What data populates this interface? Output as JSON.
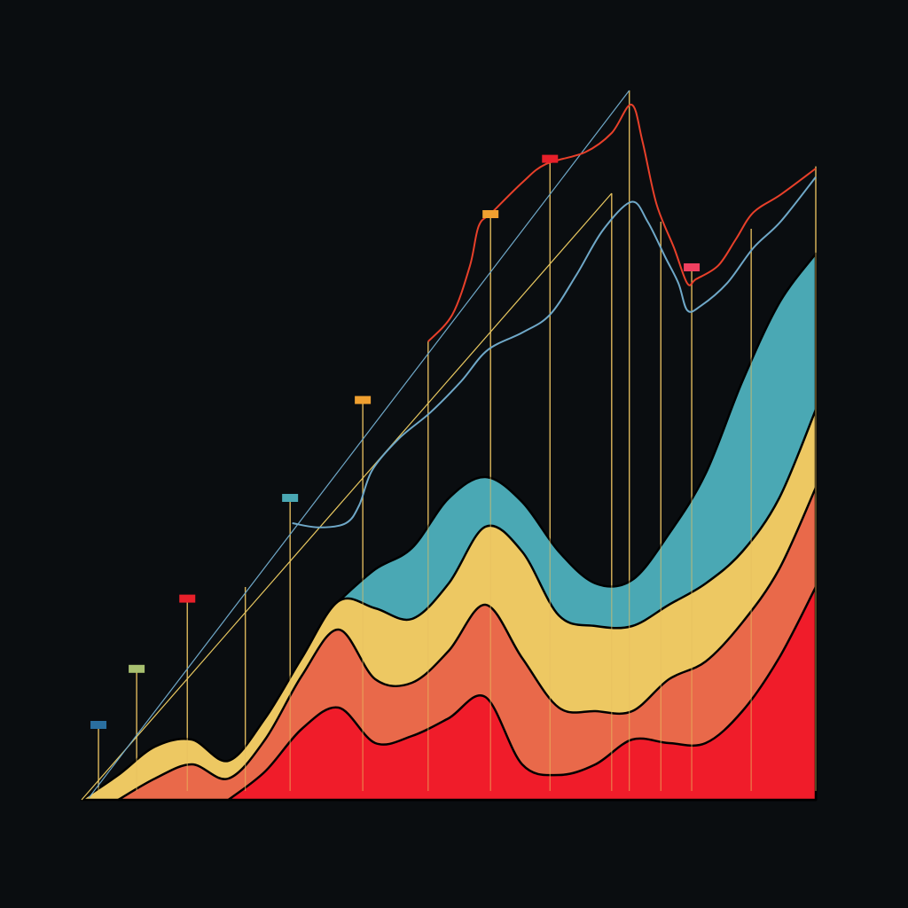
{
  "chart_data": {
    "type": "area",
    "stacked": true,
    "background": "#0a0d10",
    "outline": "#000000",
    "grid": false,
    "xlim": [
      0,
      100
    ],
    "ylim": [
      0,
      100
    ],
    "x": [
      0,
      5,
      10,
      15,
      20,
      25,
      30,
      35,
      40,
      45,
      50,
      55,
      60,
      65,
      70,
      75,
      80,
      85,
      90,
      95,
      100
    ],
    "series": [
      {
        "color": "#f01c2a",
        "values": [
          null,
          null,
          null,
          null,
          0,
          4,
          10,
          13,
          8,
          9,
          11.5,
          14.5,
          5,
          3.5,
          5,
          8.5,
          8,
          8,
          12.5,
          20,
          30
        ]
      },
      {
        "color": "#e9694a",
        "values": [
          null,
          0,
          3,
          5,
          3,
          4.5,
          7.5,
          11,
          9,
          7.5,
          9.5,
          13,
          15,
          9.5,
          7.5,
          4,
          9,
          11.5,
          12.5,
          12.5,
          14
        ]
      },
      {
        "color": "#edc862",
        "values": [
          0,
          3.5,
          4.5,
          3.5,
          2.5,
          3,
          2.5,
          4,
          10,
          9,
          9.5,
          11,
          15,
          13,
          12,
          12,
          10.5,
          11,
          10,
          10,
          11
        ]
      },
      {
        "color": "#4aa8b4",
        "values": [
          null,
          null,
          null,
          null,
          null,
          null,
          null,
          0,
          5.5,
          10,
          12,
          7,
          7,
          9,
          6,
          6.5,
          10,
          15.5,
          24,
          27.5,
          22
        ]
      }
    ],
    "lines": [
      {
        "color": "#e8c860",
        "width": 1.2,
        "x": [
          0,
          72.2
        ],
        "values": [
          0,
          85.5
        ]
      },
      {
        "color": "#6fa8c8",
        "width": 1.2,
        "x": [
          1,
          74.6
        ],
        "values": [
          0.3,
          100
        ]
      },
      {
        "color": "#e8402a",
        "width": 2,
        "x": [
          47.2,
          50.5,
          52.9,
          54.1,
          55.9,
          60.1,
          63.2,
          68.6,
          72.2,
          74.9,
          76.4,
          78.3,
          80.7,
          82.5,
          83.7,
          86.7,
          89.1,
          91.5,
          95.2,
          100
        ],
        "values": [
          64.6,
          68.4,
          75.3,
          80.9,
          82.8,
          87.1,
          89.6,
          91.3,
          94,
          98,
          92.8,
          84,
          77.8,
          72.8,
          73.4,
          75.3,
          79,
          82.8,
          85.3,
          89
        ]
      },
      {
        "color": "#6fa8c8",
        "width": 2,
        "x": [
          28.7,
          32.4,
          36,
          37.8,
          39.6,
          43.2,
          47.5,
          51.7,
          55.3,
          60.1,
          63.8,
          67.4,
          71,
          74.9,
          77.1,
          79.5,
          81.3,
          82.5,
          84.3,
          87.9,
          91.5,
          95.2,
          100
        ],
        "values": [
          39,
          38.4,
          39,
          41.5,
          46.5,
          50.9,
          54.6,
          59,
          63.4,
          65.9,
          68.4,
          74,
          80.3,
          84.3,
          81.5,
          76.5,
          72.8,
          69,
          69.6,
          72.8,
          77.8,
          81.5,
          87.8
        ]
      }
    ],
    "stems": {
      "color": "#e8c060",
      "x": [
        2.3,
        7.5,
        14.4,
        22.3,
        28.4,
        38.3,
        47.2,
        55.7,
        63.8,
        72.2,
        74.6,
        78.9,
        83.1,
        91.2,
        100
      ],
      "values": [
        10.5,
        18.4,
        28.3,
        30,
        42.5,
        56.3,
        64.6,
        82.5,
        90.3,
        85.5,
        100,
        81.5,
        75,
        80.5,
        89.3
      ],
      "flag_colors": [
        "#2a6fa0",
        "#a8c070",
        "#e8202a",
        null,
        "#4aa8b4",
        "#f0a030",
        null,
        "#f0a030",
        "#e8202a",
        null,
        null,
        null,
        "#f04060",
        null,
        null
      ]
    }
  }
}
